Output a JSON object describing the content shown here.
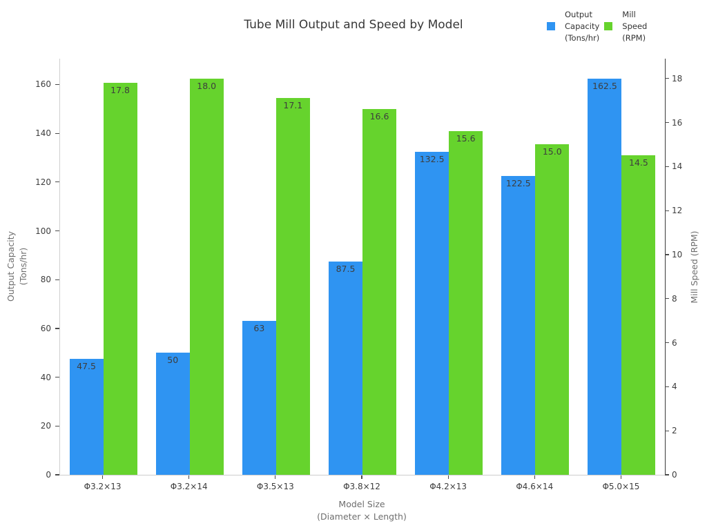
{
  "title": "Tube Mill Output and Speed by Model",
  "legend": [
    {
      "label": "Output\nCapacity\n(Tons/hr)",
      "color": "#2f94f2"
    },
    {
      "label": "Mill\nSpeed\n(RPM)",
      "color": "#66d32d"
    }
  ],
  "chart_data": {
    "type": "bar",
    "title": "Tube Mill Output and Speed by Model",
    "categories": [
      "Φ3.2×13",
      "Φ3.2×14",
      "Φ3.5×13",
      "Φ3.8×12",
      "Φ4.2×13",
      "Φ4.6×14",
      "Φ5.0×15"
    ],
    "series": [
      {
        "name": "Output Capacity (Tons/hr)",
        "axis": "left",
        "color": "#2f94f2",
        "values": [
          47.5,
          50,
          63,
          87.5,
          132.5,
          122.5,
          162.5
        ],
        "labels": [
          "47.5",
          "50",
          "63",
          "87.5",
          "132.5",
          "122.5",
          "162.5"
        ]
      },
      {
        "name": "Mill Speed (RPM)",
        "axis": "right",
        "color": "#66d32d",
        "values": [
          17.8,
          18.0,
          17.1,
          16.6,
          15.6,
          15.0,
          14.5
        ],
        "labels": [
          "17.8",
          "18.0",
          "17.1",
          "16.6",
          "15.6",
          "15.0",
          "14.5"
        ]
      }
    ],
    "xlabel": "Model Size\n(Diameter × Length)",
    "ylabel_left": "Output Capacity\n(Tons/hr)",
    "ylabel_right": "Mill Speed (RPM)",
    "left_axis": {
      "min": 0,
      "max": 170.6,
      "ticks": [
        0,
        20,
        40,
        60,
        80,
        100,
        120,
        140,
        160
      ]
    },
    "right_axis": {
      "min": 0,
      "max": 18.9,
      "ticks": [
        0,
        2,
        4,
        6,
        8,
        10,
        12,
        14,
        16,
        18
      ]
    },
    "grid": false,
    "legend_position": "top-right",
    "bar_value_labels": "inside-top"
  }
}
